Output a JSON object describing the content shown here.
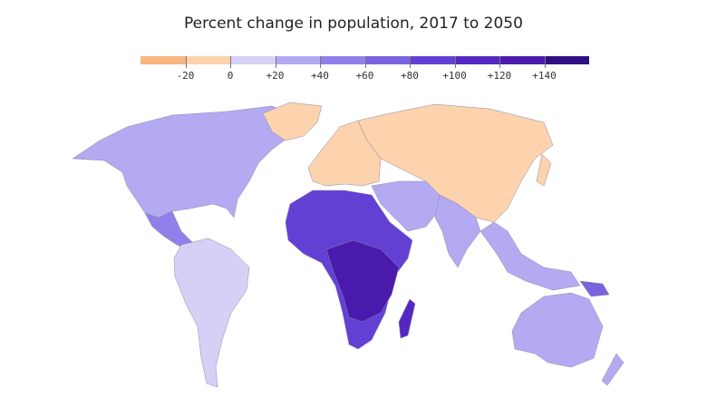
{
  "title": "Percent change in population, 2017 to 2050",
  "legend": {
    "bins": [
      {
        "range": "below -20",
        "color": "#f9b57f"
      },
      {
        "range": "-20 to 0",
        "color": "#fcd3ad"
      },
      {
        "range": "0 to +20",
        "color": "#d6d0f7"
      },
      {
        "range": "+20 to +40",
        "color": "#b4aaf2"
      },
      {
        "range": "+40 to +60",
        "color": "#9180ea"
      },
      {
        "range": "+60 to +80",
        "color": "#7a63dd"
      },
      {
        "range": "+80 to +100",
        "color": "#6240d4"
      },
      {
        "range": "+100 to +120",
        "color": "#5427c4"
      },
      {
        "range": "+120 to +140",
        "color": "#4a1aad"
      },
      {
        "range": "above +140",
        "color": "#2f0f82"
      }
    ],
    "ticks": [
      "-20",
      "0",
      "+20",
      "+40",
      "+60",
      "+80",
      "+100",
      "+120",
      "+140"
    ]
  },
  "regions": [
    {
      "name": "North America",
      "bin": 3
    },
    {
      "name": "Greenland",
      "bin": 1
    },
    {
      "name": "Central America",
      "bin": 4
    },
    {
      "name": "South America",
      "bin": 2
    },
    {
      "name": "Europe",
      "bin": 1
    },
    {
      "name": "Russia & China",
      "bin": 1
    },
    {
      "name": "Middle East",
      "bin": 3
    },
    {
      "name": "Africa",
      "bin": 6
    },
    {
      "name": "Central Africa",
      "bin": 8
    },
    {
      "name": "Madagascar",
      "bin": 7
    },
    {
      "name": "South Asia",
      "bin": 3
    },
    {
      "name": "Southeast Asia",
      "bin": 3
    },
    {
      "name": "Japan",
      "bin": 1
    },
    {
      "name": "Australia",
      "bin": 3
    },
    {
      "name": "New Zealand",
      "bin": 3
    },
    {
      "name": "Papua New Guinea",
      "bin": 5
    }
  ]
}
